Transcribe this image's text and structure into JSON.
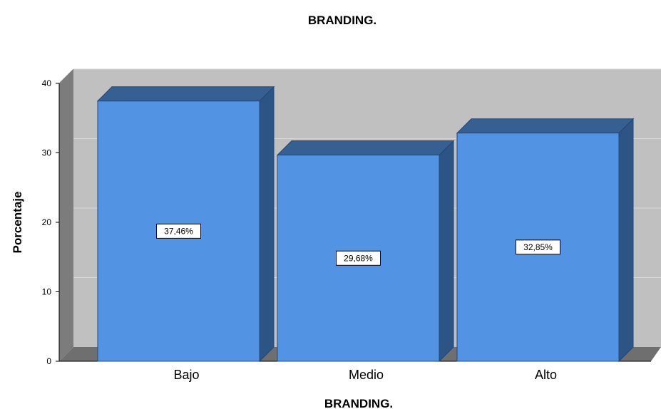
{
  "chart_data": {
    "type": "bar",
    "title": "BRANDING.",
    "xlabel": "BRANDING.",
    "ylabel": "Porcentaje",
    "categories": [
      "Bajo",
      "Medio",
      "Alto"
    ],
    "values": [
      37.46,
      29.68,
      32.85
    ],
    "data_labels": [
      "37,46%",
      "29,68%",
      "32,85%"
    ],
    "ylim": [
      0,
      40
    ],
    "yticks": [
      "0",
      "10",
      "20",
      "30",
      "40"
    ],
    "grid": true,
    "legend": "none",
    "style": "3d",
    "colors": {
      "bar_front": "#5393e4",
      "bar_top": "#365f92",
      "bar_side": "#2c5485",
      "bar_outline": "#24477a",
      "back_wall": "#c0c0c0",
      "side_wall": "#7c7c7c",
      "floor": "#6f6f6f",
      "gridline": "#d6d6d6"
    }
  }
}
